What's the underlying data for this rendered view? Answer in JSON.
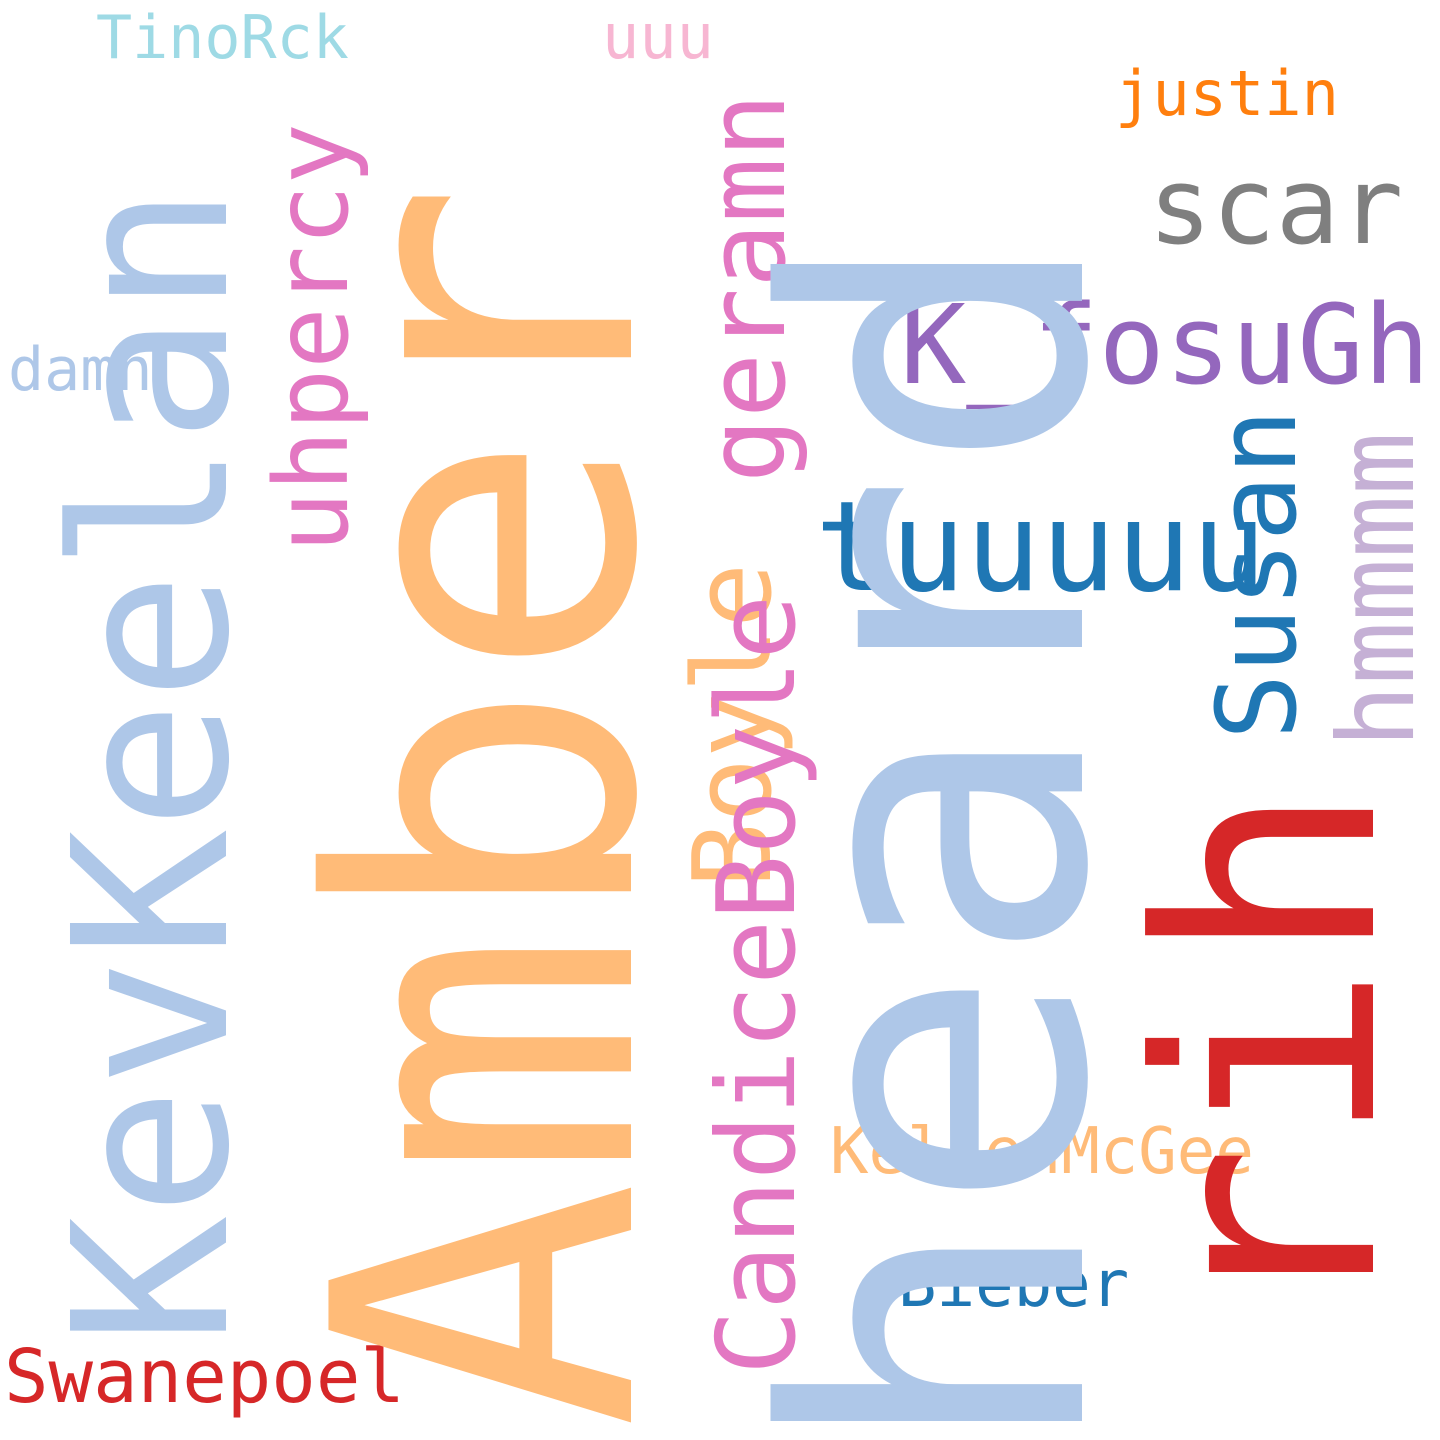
{
  "palette": {
    "light_blue": "#aec7e8",
    "light_orange": "#ffbb78",
    "red": "#d62728",
    "blue": "#1f77b4",
    "purple": "#9467bd",
    "pink": "#e377c2",
    "gray": "#7f7f7f",
    "orange": "#ff7f0e",
    "lavender": "#c5b0d5",
    "light_pink": "#f7b6d2",
    "cyan": "#9edae5"
  },
  "words": {
    "heard": {
      "text": "heard",
      "color": "#aec7e8"
    },
    "amber": {
      "text": "Amber",
      "color": "#ffbb78"
    },
    "kevkeelan": {
      "text": "KevKeelan",
      "color": "#aec7e8"
    },
    "rih": {
      "text": "rih",
      "color": "#d62728"
    },
    "tuuuuu": {
      "text": "tuuuuu",
      "color": "#1f77b4"
    },
    "k_fosugh": {
      "text": "K_fosuGh",
      "color": "#9467bd"
    },
    "candiceboyle": {
      "text": "CandiceBoyle",
      "color": "#e377c2"
    },
    "boyle": {
      "text": "Boyle",
      "color": "#ffbb78"
    },
    "geramn": {
      "text": "geramn",
      "color": "#e377c2"
    },
    "uhpercy": {
      "text": "uhpercy",
      "color": "#e377c2"
    },
    "susan": {
      "text": "Susan",
      "color": "#1f77b4"
    },
    "hmmmm": {
      "text": "hmmmm",
      "color": "#c5b0d5"
    },
    "scar": {
      "text": "scar",
      "color": "#7f7f7f"
    },
    "justin": {
      "text": "justin",
      "color": "#ff7f0e"
    },
    "tinorck": {
      "text": "TinoRck",
      "color": "#9edae5"
    },
    "uuu": {
      "text": "uuu",
      "color": "#f7b6d2"
    },
    "damn": {
      "text": "damn",
      "color": "#aec7e8"
    },
    "kellenmcgee": {
      "text": "KellenMcGee",
      "color": "#ffbb78"
    },
    "bieber": {
      "text": "Bieber",
      "color": "#1f77b4"
    },
    "swanepoel": {
      "text": "Swanepoel",
      "color": "#d62728"
    }
  }
}
